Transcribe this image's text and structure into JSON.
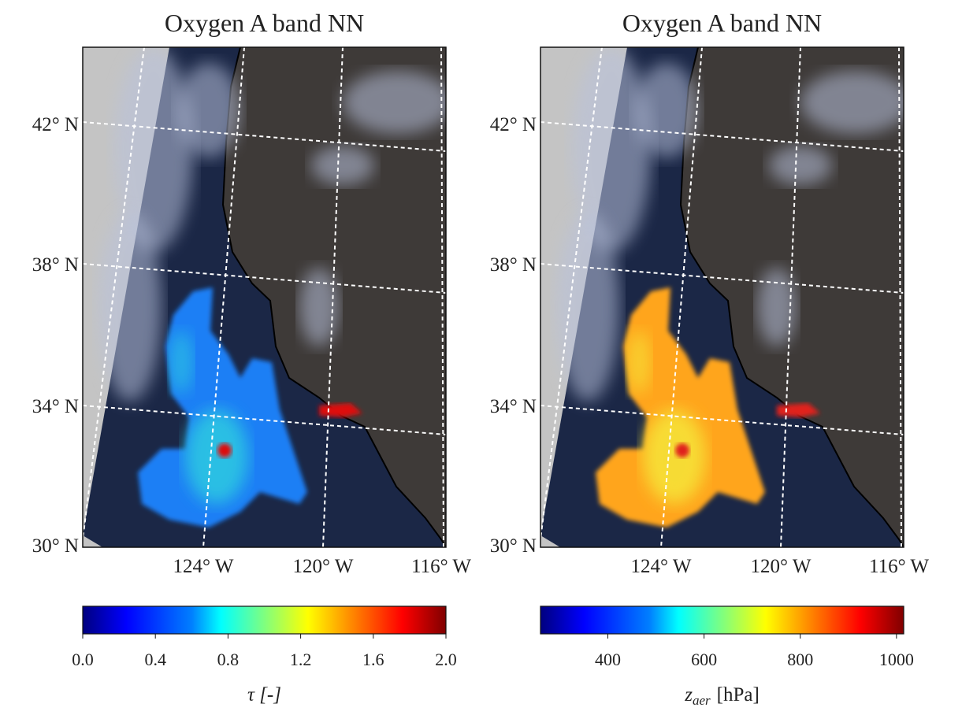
{
  "panels": [
    {
      "title": "Oxygen A band NN",
      "lat_labels": [
        "42° N",
        "38° N",
        "34° N",
        "30° N"
      ],
      "lon_labels": [
        "124° W",
        "120° W",
        "116° W"
      ],
      "colorbar": {
        "lim": [
          0,
          2.0
        ],
        "ticks": [
          {
            "value": 0,
            "label": "0.0"
          },
          0.4,
          0.8,
          1.2,
          1.6,
          {
            "value": 2,
            "label": "2.0"
          }
        ],
        "label": "τ [-]"
      }
    },
    {
      "title": "Oxygen A band NN",
      "lat_labels": [
        "42° N",
        "38° N",
        "34° N",
        "30° N"
      ],
      "lon_labels": [
        "124° W",
        "120° W",
        "116° W"
      ],
      "colorbar": {
        "lim": [
          260,
          1015
        ],
        "ticks": [
          400,
          600,
          800,
          1000
        ],
        "label": {
          "symbol": "z",
          "subscript": "aer",
          "unit": "[hPa]"
        }
      }
    }
  ]
}
